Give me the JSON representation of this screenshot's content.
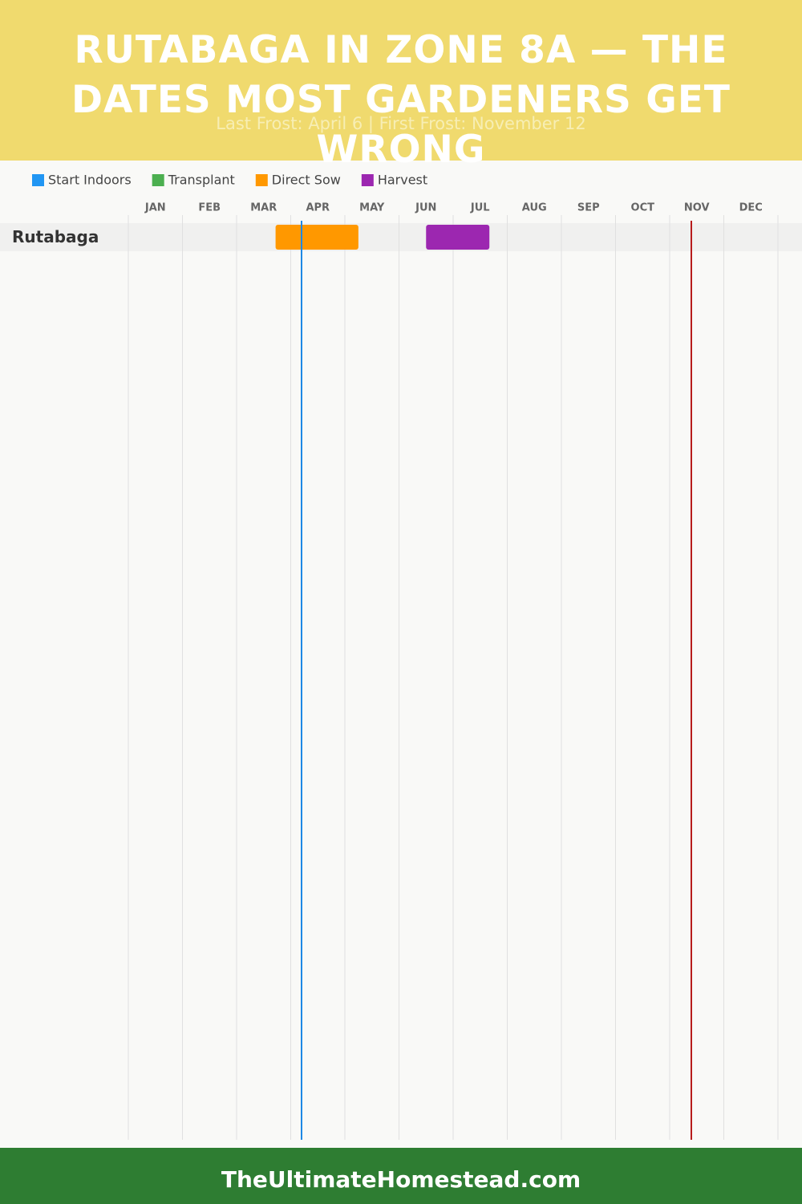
{
  "chart_data": {
    "type": "gantt",
    "title": "RUTABAGA IN ZONE 8A — THE DATES MOST GARDENERS GET WRONG",
    "subtitle": "Last Frost: April 6 | First Frost: November 12",
    "months": [
      "JAN",
      "FEB",
      "MAR",
      "APR",
      "MAY",
      "JUN",
      "JUL",
      "AUG",
      "SEP",
      "OCT",
      "NOV",
      "DEC"
    ],
    "xlim": [
      0,
      12
    ],
    "categories": [
      "Rutabaga"
    ],
    "series": [
      {
        "name": "Start Indoors",
        "color": "#2196f3",
        "values": [
          null
        ]
      },
      {
        "name": "Transplant",
        "color": "#4caf50",
        "values": [
          null
        ]
      },
      {
        "name": "Direct Sow",
        "color": "#ff9800",
        "values": [
          [
            2.72,
            4.25
          ]
        ]
      },
      {
        "name": "Harvest",
        "color": "#9c27b0",
        "values": [
          [
            5.5,
            6.67
          ]
        ]
      }
    ],
    "frost_lines": [
      {
        "x": 3.2,
        "color": "#1e88e5"
      },
      {
        "x": 10.4,
        "color": "#b71c1c"
      }
    ],
    "grid": true,
    "footer": "TheUltimateHomestead.com"
  }
}
